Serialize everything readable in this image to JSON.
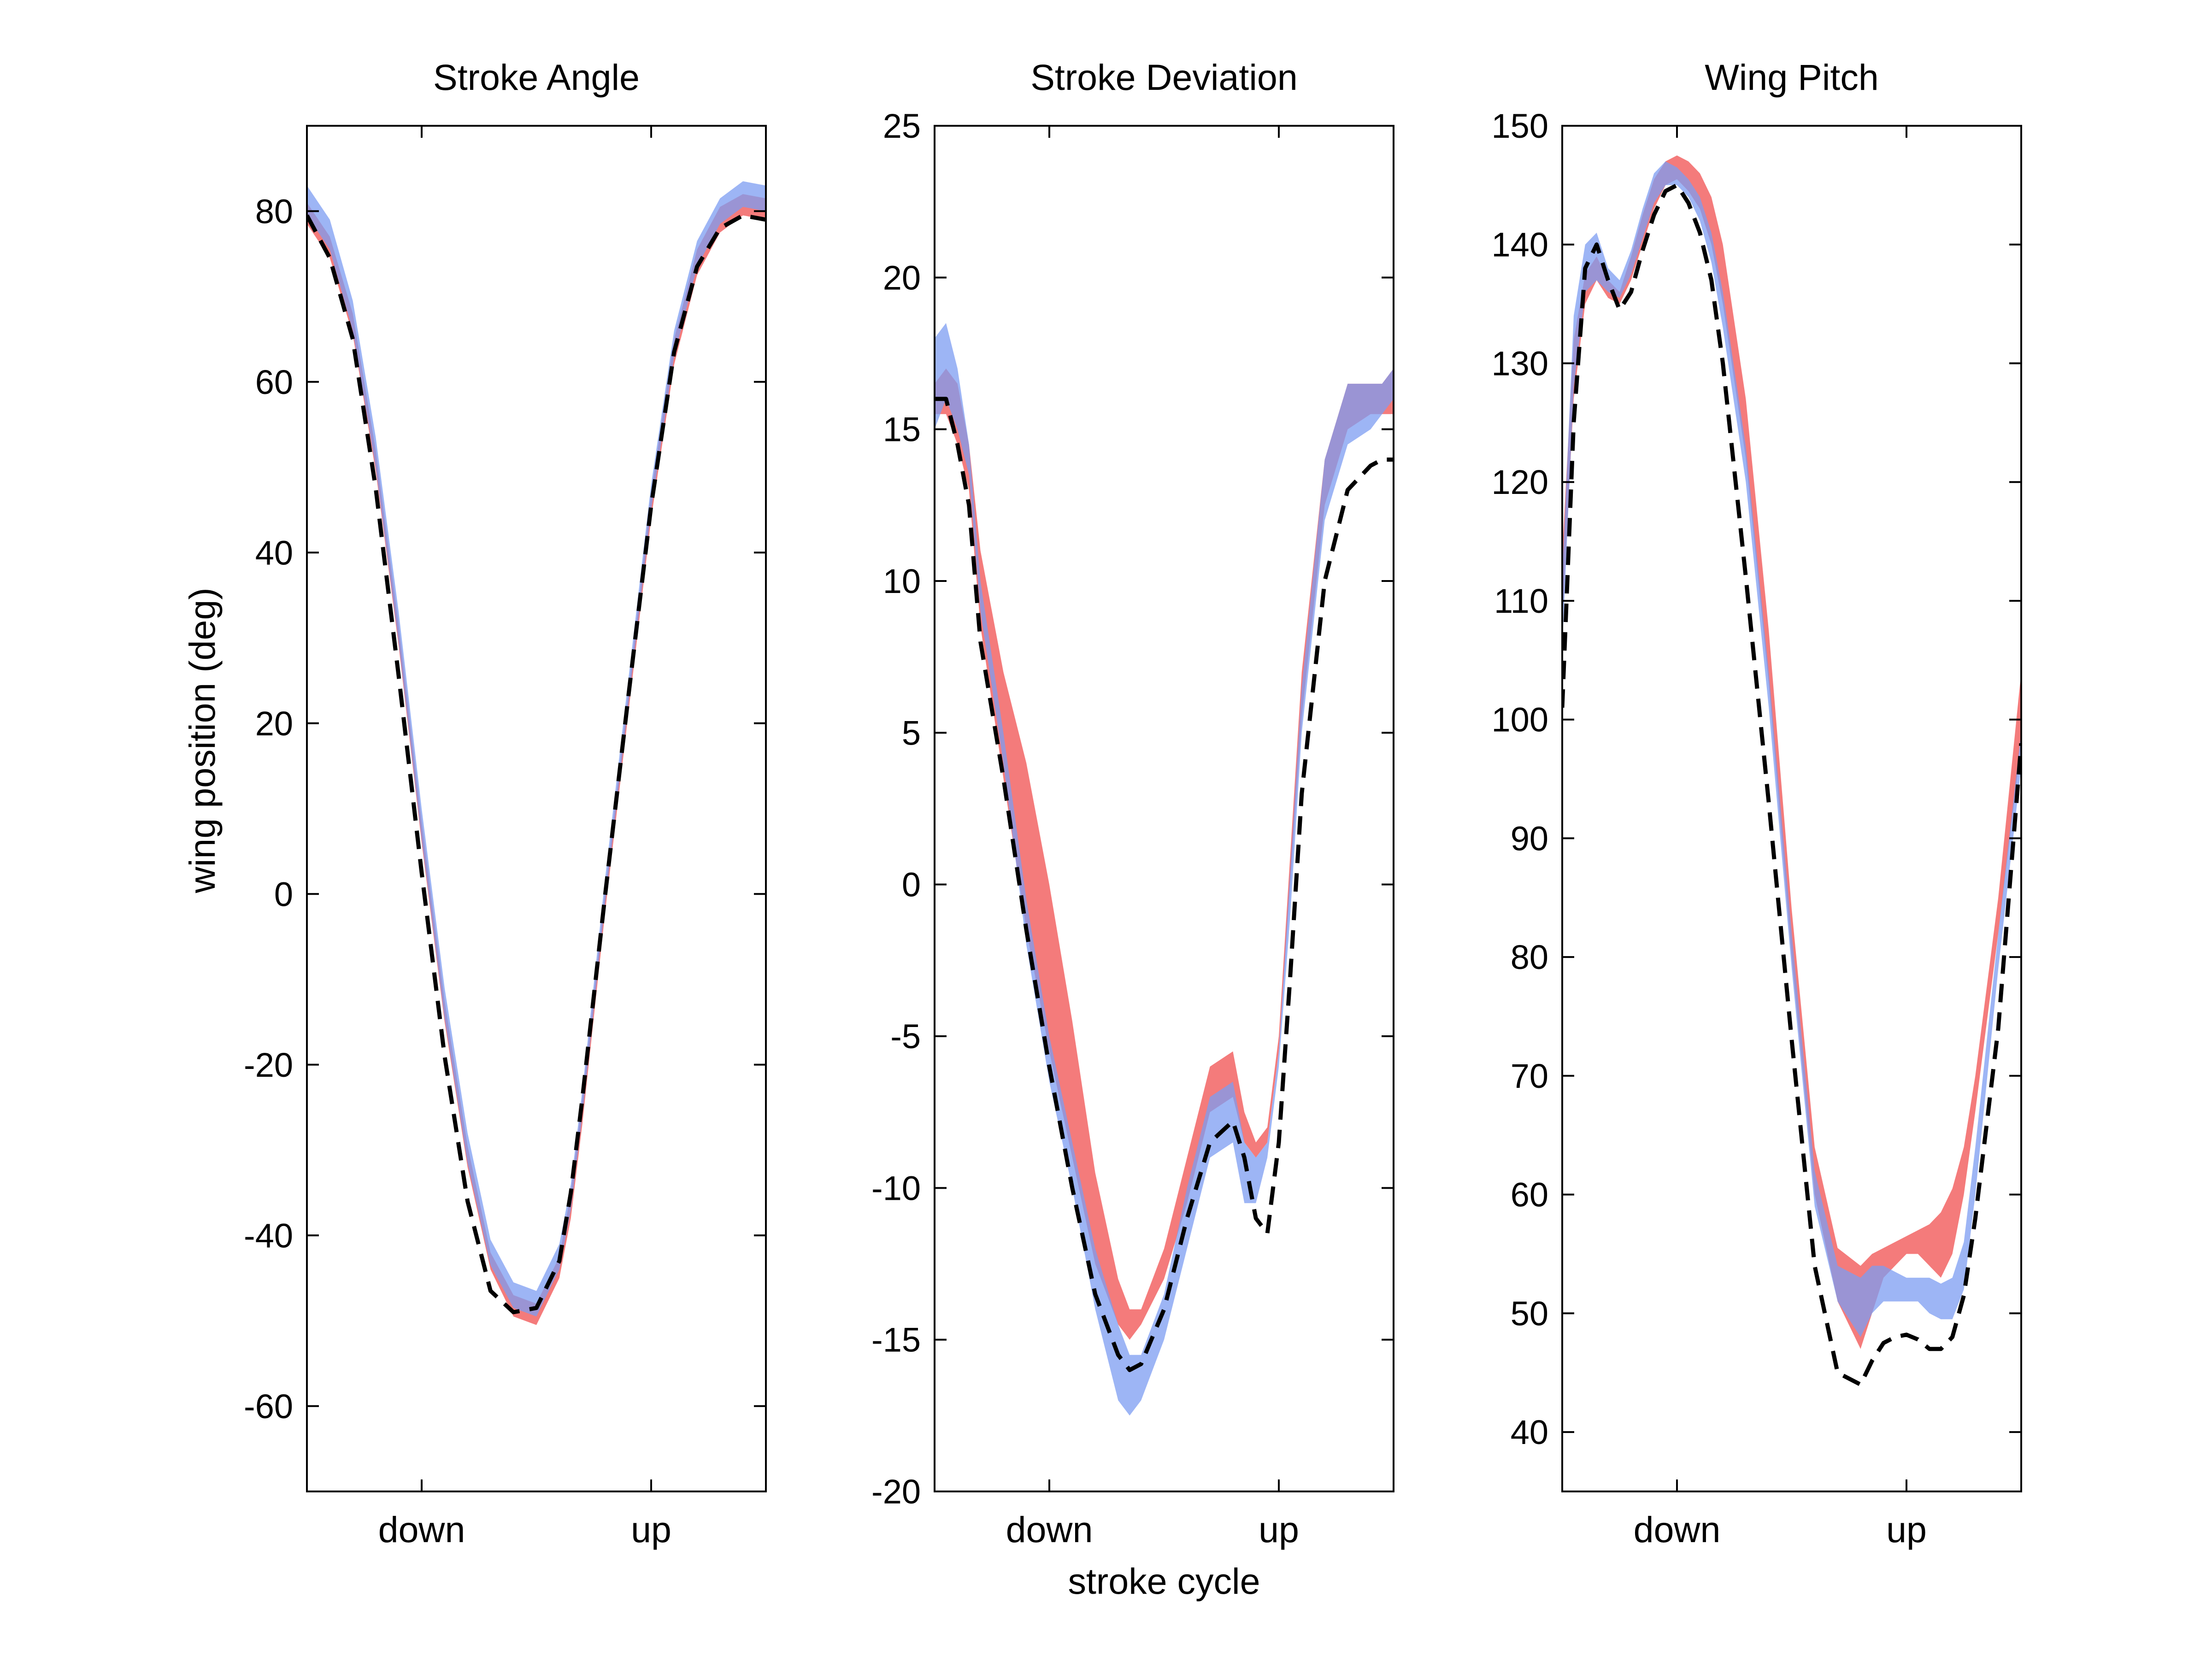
{
  "colors": {
    "red_band": "#f47b7b",
    "blue_band": "#7c9cf2",
    "overlap_band": "#8a86dc",
    "mean_line": "#000000",
    "axes": "#000000",
    "background": "#ffffff"
  },
  "figure": {
    "ylabel": "wing position (deg)",
    "xlabel": "stroke cycle"
  },
  "chart_data": [
    {
      "type": "area",
      "title": "Stroke Angle",
      "xlabel": "",
      "ylabel": "wing position (deg)",
      "xlim": [
        0,
        1
      ],
      "ylim": [
        -70,
        90
      ],
      "yticks": [
        -60,
        -40,
        -20,
        0,
        20,
        40,
        60,
        80
      ],
      "ytick_labels": [
        "-60",
        "-40",
        "-20",
        "0",
        "20",
        "40",
        "60",
        "80"
      ],
      "xticks": [
        0.25,
        0.75
      ],
      "xtick_labels": [
        "down",
        "up"
      ],
      "x": [
        0,
        0.05,
        0.1,
        0.15,
        0.2,
        0.25,
        0.3,
        0.35,
        0.4,
        0.45,
        0.5,
        0.55,
        0.575,
        0.6,
        0.65,
        0.7,
        0.75,
        0.8,
        0.85,
        0.9,
        0.95,
        1.0
      ],
      "series": [
        {
          "name": "",
          "style": "band",
          "color_key": "red_band",
          "lower": [
            78.5,
            74.5,
            65.5,
            49.5,
            29,
            6,
            -15,
            -32,
            -44,
            -49.5,
            -50.5,
            -45,
            -38,
            -27,
            -2,
            21,
            44,
            62,
            72.5,
            77.5,
            79.5,
            79
          ],
          "upper": [
            81,
            77,
            68,
            52,
            31.5,
            8.5,
            -12.5,
            -29.5,
            -42,
            -47,
            -48,
            -42.5,
            -35,
            -24,
            0.5,
            23.5,
            47,
            65,
            75.5,
            80.5,
            82,
            81.5
          ]
        },
        {
          "name": "",
          "style": "band",
          "color_key": "blue_band",
          "lower": [
            79.5,
            75.5,
            66,
            50,
            29.5,
            6.5,
            -14.5,
            -31.5,
            -43.5,
            -48.5,
            -49.5,
            -44,
            -37,
            -26,
            -1,
            22,
            45,
            63,
            73.5,
            78.5,
            80.5,
            80
          ],
          "upper": [
            83,
            79,
            69.5,
            53.5,
            33,
            10,
            -11,
            -28,
            -40.5,
            -45.5,
            -46.5,
            -41,
            -34,
            -23,
            2,
            25,
            48,
            66,
            76.5,
            81.5,
            83.5,
            83
          ]
        },
        {
          "name": "",
          "style": "dashed",
          "color_key": "mean_line",
          "values": [
            79.5,
            74.5,
            65,
            47.5,
            25.5,
            2.5,
            -19,
            -36,
            -46.5,
            -49,
            -48.5,
            -43,
            -35,
            -24,
            0,
            23,
            45.5,
            63.5,
            73.5,
            78,
            79.5,
            79
          ]
        }
      ]
    },
    {
      "type": "area",
      "title": "Stroke Deviation",
      "xlabel": "stroke cycle",
      "ylabel": "",
      "xlim": [
        0,
        1
      ],
      "ylim": [
        -20,
        25
      ],
      "yticks": [
        -20,
        -15,
        -10,
        -5,
        0,
        5,
        10,
        15,
        20,
        25
      ],
      "ytick_labels": [
        "-20",
        "-15",
        "-10",
        "-5",
        "0",
        "5",
        "10",
        "15",
        "20",
        "25"
      ],
      "xticks": [
        0.25,
        0.75
      ],
      "xtick_labels": [
        "down",
        "up"
      ],
      "x": [
        0,
        0.025,
        0.05,
        0.075,
        0.1,
        0.15,
        0.2,
        0.25,
        0.3,
        0.35,
        0.4,
        0.425,
        0.45,
        0.5,
        0.55,
        0.6,
        0.65,
        0.675,
        0.7,
        0.725,
        0.75,
        0.775,
        0.8,
        0.85,
        0.9,
        0.95,
        0.975,
        1.0
      ],
      "series": [
        {
          "name": "",
          "style": "band",
          "color_key": "red_band",
          "lower": [
            15.5,
            15.5,
            14.5,
            13,
            8.5,
            3.5,
            -1.5,
            -5.5,
            -9,
            -12.5,
            -14.5,
            -15,
            -14.5,
            -13,
            -10.5,
            -7.5,
            -7,
            -8.5,
            -9,
            -8.5,
            -5.5,
            0,
            5.5,
            12.5,
            15,
            15.5,
            15.5,
            15.5
          ],
          "upper": [
            16.5,
            17,
            16.5,
            14.5,
            11,
            7,
            4,
            0,
            -4.5,
            -9.5,
            -13,
            -14,
            -14,
            -12,
            -9,
            -6,
            -5.5,
            -7.5,
            -8.5,
            -8,
            -5,
            1,
            7,
            14,
            16.5,
            16.5,
            16.5,
            17
          ]
        },
        {
          "name": "",
          "style": "band",
          "color_key": "blue_band",
          "lower": [
            15,
            16,
            15,
            13.5,
            9,
            4,
            -2,
            -6.5,
            -10,
            -14,
            -17,
            -17.5,
            -17,
            -15,
            -12,
            -9,
            -8.5,
            -10.5,
            -10.5,
            -9,
            -6,
            -1,
            5,
            12,
            14.5,
            15,
            15.5,
            16
          ],
          "upper": [
            18,
            18.5,
            17,
            14.5,
            10,
            5,
            -0.5,
            -5,
            -8.5,
            -12,
            -14.5,
            -15.5,
            -15.5,
            -13.5,
            -10,
            -7,
            -6.5,
            -8.5,
            -9,
            -8.5,
            -5.5,
            0.5,
            6.5,
            14,
            16.5,
            16.5,
            16.5,
            17
          ]
        },
        {
          "name": "",
          "style": "dashed",
          "color_key": "mean_line",
          "values": [
            16,
            16,
            14.5,
            12.5,
            8,
            3.5,
            -1.5,
            -6,
            -10,
            -13.5,
            -15.5,
            -16,
            -15.8,
            -14,
            -11,
            -8.5,
            -7.8,
            -9,
            -11,
            -11.5,
            -8.5,
            -3,
            3,
            10,
            13,
            13.8,
            14,
            14
          ]
        }
      ]
    },
    {
      "type": "area",
      "title": "Wing Pitch",
      "xlabel": "",
      "ylabel": "",
      "xlim": [
        0,
        1
      ],
      "ylim": [
        35,
        150
      ],
      "yticks": [
        40,
        50,
        60,
        70,
        80,
        90,
        100,
        110,
        120,
        130,
        140,
        150
      ],
      "ytick_labels": [
        "40",
        "50",
        "60",
        "70",
        "80",
        "90",
        "100",
        "110",
        "120",
        "130",
        "140",
        "150"
      ],
      "xticks": [
        0.25,
        0.75
      ],
      "xtick_labels": [
        "down",
        "up"
      ],
      "x": [
        0,
        0.025,
        0.05,
        0.075,
        0.1,
        0.125,
        0.15,
        0.175,
        0.2,
        0.225,
        0.25,
        0.275,
        0.3,
        0.325,
        0.35,
        0.4,
        0.45,
        0.5,
        0.55,
        0.6,
        0.65,
        0.675,
        0.7,
        0.725,
        0.75,
        0.775,
        0.8,
        0.825,
        0.85,
        0.875,
        0.9,
        0.95,
        1.0
      ],
      "series": [
        {
          "name": "",
          "style": "band",
          "color_key": "red_band",
          "lower": [
            108,
            127,
            135,
            137,
            135.5,
            135,
            137,
            140,
            143,
            145,
            145.5,
            144.5,
            143,
            140,
            135,
            122,
            103,
            80,
            60,
            51,
            47,
            50,
            53,
            54,
            55,
            55,
            54,
            53,
            55,
            60,
            67,
            82,
            98
          ],
          "upper": [
            114,
            132,
            137.5,
            139,
            137,
            136,
            139,
            142.5,
            145.5,
            147,
            147.5,
            147,
            146,
            144,
            140,
            127,
            107.5,
            84,
            64,
            55.5,
            54,
            55,
            55.5,
            56,
            56.5,
            57,
            57.5,
            58.5,
            60.5,
            64,
            70,
            85,
            104
          ]
        },
        {
          "name": "",
          "style": "band",
          "color_key": "blue_band",
          "lower": [
            106,
            128,
            136,
            137,
            136,
            135.5,
            137.5,
            140.5,
            143.5,
            145,
            145,
            144,
            142,
            138.5,
            133,
            120,
            101,
            79,
            59,
            51,
            48,
            50,
            51,
            51,
            51,
            51,
            50,
            49.5,
            49.5,
            52,
            60,
            79,
            96
          ],
          "upper": [
            112,
            134,
            140,
            141,
            138,
            137,
            139.5,
            143,
            146,
            147,
            146.5,
            145.5,
            144,
            141,
            136,
            123,
            104,
            82,
            62,
            54,
            53,
            54,
            54,
            53.5,
            53,
            53,
            53,
            52.5,
            53,
            56,
            64,
            82,
            99
          ]
        },
        {
          "name": "",
          "style": "dashed",
          "color_key": "mean_line",
          "values": [
            101,
            125,
            138,
            140,
            137,
            134.5,
            136,
            139.5,
            142.5,
            144.5,
            145,
            143.5,
            141,
            137,
            130,
            112,
            93,
            73,
            54,
            45,
            44,
            46,
            47.5,
            48,
            48.2,
            47.8,
            47,
            47,
            48,
            51.5,
            58,
            74,
            98
          ]
        }
      ]
    }
  ]
}
